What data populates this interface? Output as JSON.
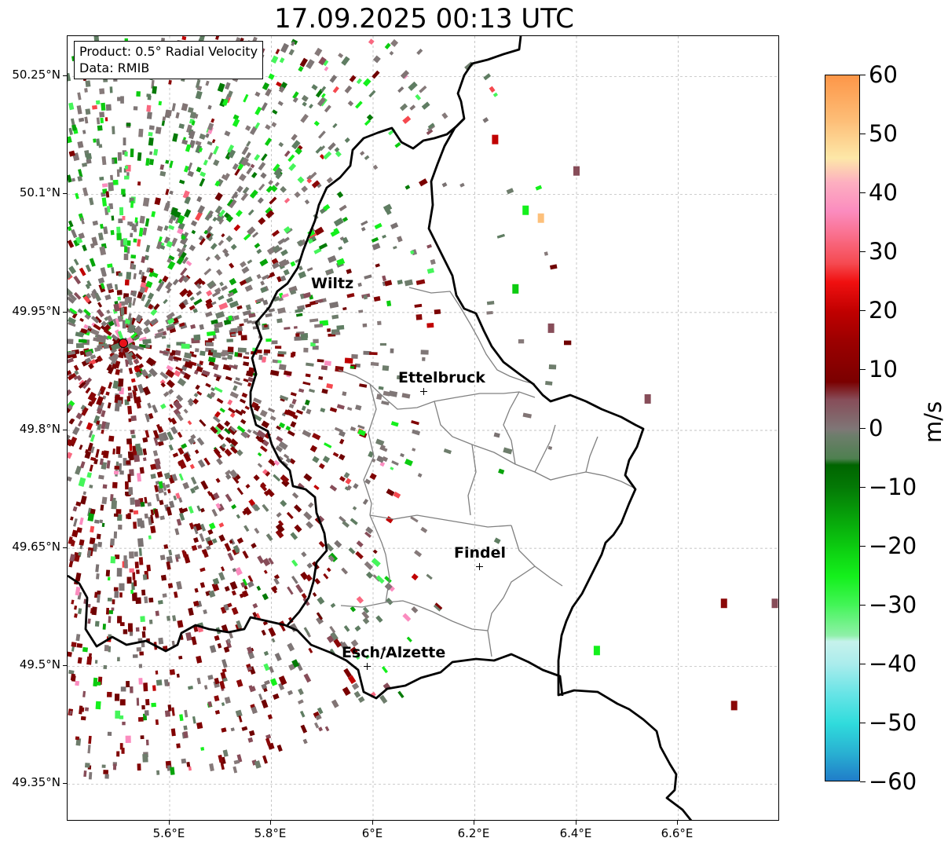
{
  "title": "17.09.2025 00:13 UTC",
  "info": {
    "product": "Product: 0.5° Radial Velocity",
    "data_source": "Data: RMIB"
  },
  "axes": {
    "lat_ticks": [
      "50.25°N",
      "50.1°N",
      "49.95°N",
      "49.8°N",
      "49.65°N",
      "49.5°N",
      "49.35°N"
    ],
    "lon_ticks": [
      "5.6°E",
      "5.8°E",
      "6°E",
      "6.2°E",
      "6.4°E",
      "6.6°E"
    ],
    "lat_values": [
      50.25,
      50.1,
      49.95,
      49.8,
      49.65,
      49.5,
      49.35
    ],
    "lon_values": [
      5.6,
      5.8,
      6.0,
      6.2,
      6.4,
      6.6
    ],
    "lon_range": [
      5.4,
      6.8
    ],
    "lat_range": [
      49.3,
      50.3
    ],
    "grid": true
  },
  "cities": [
    {
      "name": "Wiltz",
      "lon": 5.93,
      "lat": 49.97,
      "marker": false
    },
    {
      "name": "Ettelbruck",
      "lon": 6.1,
      "lat": 49.85,
      "marker": true
    },
    {
      "name": "Findel",
      "lon": 6.21,
      "lat": 49.63,
      "marker": true
    },
    {
      "name": "Esch/Alzette",
      "lon": 5.99,
      "lat": 49.5,
      "marker": true
    }
  ],
  "radar_site": {
    "lon": 5.51,
    "lat": 49.91,
    "color": "#e8121a"
  },
  "colorbar": {
    "unit": "m/s",
    "min": -60,
    "max": 60,
    "tick_labels": [
      "60",
      "50",
      "40",
      "30",
      "20",
      "10",
      "0",
      "−10",
      "−20",
      "−30",
      "−40",
      "−50",
      "−60"
    ],
    "tick_values": [
      60,
      50,
      40,
      30,
      20,
      10,
      0,
      -10,
      -20,
      -30,
      -40,
      -50,
      -60
    ],
    "stops": [
      {
        "v": -60,
        "color": "#1f78c8"
      },
      {
        "v": -55,
        "color": "#29b0d2"
      },
      {
        "v": -50,
        "color": "#2fdcdc"
      },
      {
        "v": -45,
        "color": "#66e4e6"
      },
      {
        "v": -40,
        "color": "#a9ecec"
      },
      {
        "v": -36,
        "color": "#c7f2ec"
      },
      {
        "v": -35,
        "color": "#8ff0a8"
      },
      {
        "v": -30,
        "color": "#45f55a"
      },
      {
        "v": -25,
        "color": "#14f01c"
      },
      {
        "v": -20,
        "color": "#0ccc10"
      },
      {
        "v": -15,
        "color": "#07a30a"
      },
      {
        "v": -10,
        "color": "#047a06"
      },
      {
        "v": -6,
        "color": "#006400"
      },
      {
        "v": -5,
        "color": "#4e8050"
      },
      {
        "v": -1,
        "color": "#6e7d6c"
      },
      {
        "v": 0,
        "color": "#7f7777"
      },
      {
        "v": 5,
        "color": "#874d59"
      },
      {
        "v": 8,
        "color": "#7a0000"
      },
      {
        "v": 15,
        "color": "#9c0000"
      },
      {
        "v": 20,
        "color": "#c00000"
      },
      {
        "v": 25,
        "color": "#f01010"
      },
      {
        "v": 28,
        "color": "#f5484e"
      },
      {
        "v": 32,
        "color": "#f96880"
      },
      {
        "v": 37,
        "color": "#fb8cbf"
      },
      {
        "v": 42,
        "color": "#fdb0c0"
      },
      {
        "v": 46,
        "color": "#fde8a8"
      },
      {
        "v": 52,
        "color": "#fdc07a"
      },
      {
        "v": 60,
        "color": "#fd9648"
      }
    ]
  },
  "colors": {
    "border_national": "#000000",
    "border_canton": "#808080",
    "grid": "#b0b0b0"
  }
}
